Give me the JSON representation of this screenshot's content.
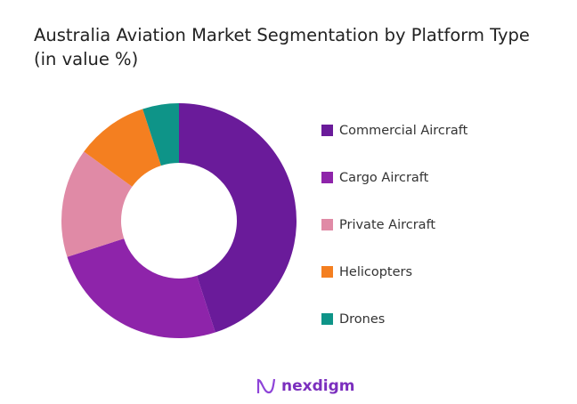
{
  "chart_data": {
    "type": "pie",
    "donut": true,
    "title": "Australia Aviation Market Segmentation by Platform Type",
    "subtitle": "(in value %)",
    "legend_position": "right",
    "series": [
      {
        "name": "Commercial Aircraft",
        "value": 45,
        "color": "#6a1b9a"
      },
      {
        "name": "Cargo Aircraft",
        "value": 25,
        "color": "#8e24aa"
      },
      {
        "name": "Private Aircraft",
        "value": 15,
        "color": "#e08aa6"
      },
      {
        "name": "Helicopters",
        "value": 10,
        "color": "#f47f20"
      },
      {
        "name": "Drones",
        "value": 5,
        "color": "#0e9488"
      }
    ]
  },
  "brand": {
    "name": "nexdigm",
    "color": "#7b2fbe"
  }
}
